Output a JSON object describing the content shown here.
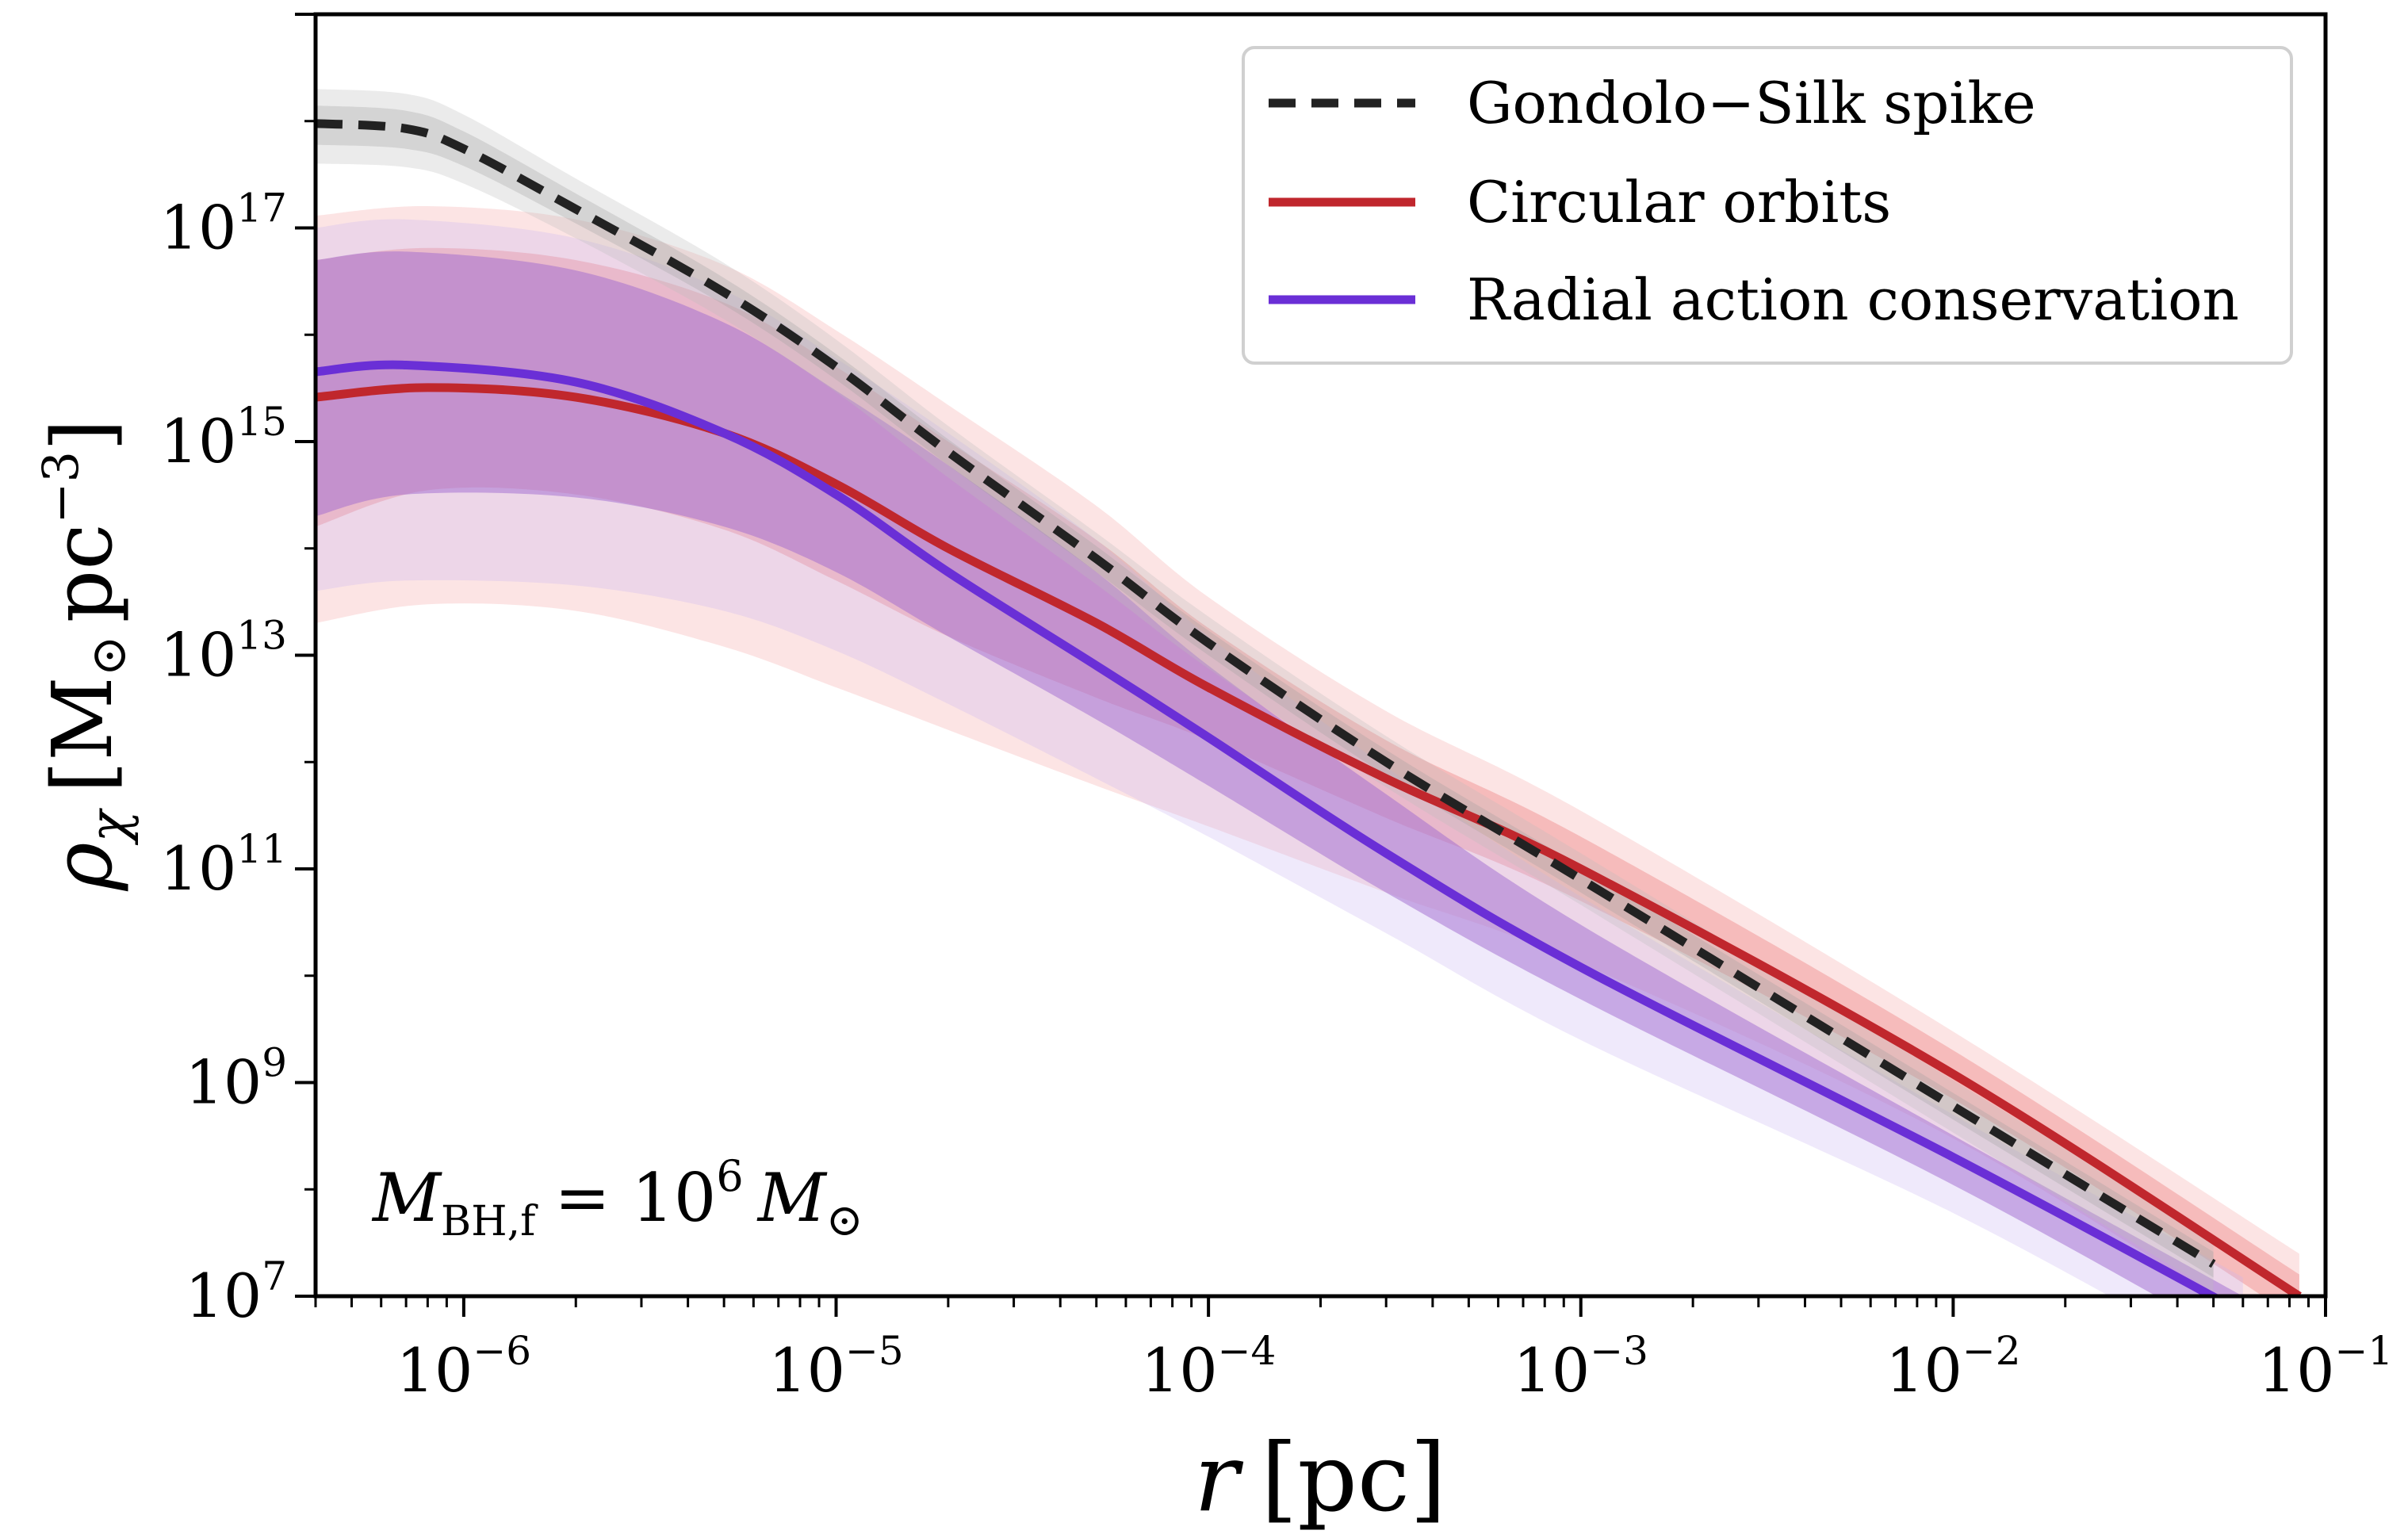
{
  "chart_data": {
    "type": "line",
    "x_scale": "log",
    "y_scale": "log",
    "xlim": [
      4e-07,
      0.1
    ],
    "ylim": [
      10000000.0,
      1e+19
    ],
    "xlabel": {
      "var": "r",
      "unit": "[pc]"
    },
    "ylabel": {
      "var": "ρ",
      "sub": "χ",
      "unit_open": "[M",
      "unit_sun": "⊙",
      "unit_pc": "pc",
      "unit_exp": "−3",
      "unit_close": "]"
    },
    "x_ticks": [
      {
        "base": "10",
        "exp": "−6",
        "value": 1e-06
      },
      {
        "base": "10",
        "exp": "−5",
        "value": 1e-05
      },
      {
        "base": "10",
        "exp": "−4",
        "value": 0.0001
      },
      {
        "base": "10",
        "exp": "−3",
        "value": 0.001
      },
      {
        "base": "10",
        "exp": "−2",
        "value": 0.01
      },
      {
        "base": "10",
        "exp": "−1",
        "value": 0.1
      }
    ],
    "y_ticks": [
      {
        "base": "10",
        "exp": "7",
        "value": 10000000.0
      },
      {
        "base": "10",
        "exp": "9",
        "value": 1000000000.0
      },
      {
        "base": "10",
        "exp": "11",
        "value": 100000000000.0
      },
      {
        "base": "10",
        "exp": "13",
        "value": 10000000000000.0
      },
      {
        "base": "10",
        "exp": "15",
        "value": 1000000000000000.0
      },
      {
        "base": "10",
        "exp": "17",
        "value": 1e+17
      }
    ],
    "grid": false,
    "legend_position": "top-right",
    "annotation": {
      "M": "M",
      "sub": "BH,f",
      "eq": "= 10",
      "exp": "6",
      "M2": "M",
      "sun": "⊙"
    },
    "series": [
      {
        "name": "Gondolo−Silk spike",
        "color": "#222222",
        "style": "dashed",
        "x": [
          4e-07,
          7e-07,
          1e-06,
          2e-06,
          5e-06,
          1e-05,
          2e-05,
          5e-05,
          0.0001,
          0.0003,
          0.001,
          0.01,
          0.05
        ],
        "y": [
          9.5e+17,
          8.5e+17,
          5.5e+17,
          1.5e+17,
          2.5e+16,
          5000000000000000.0,
          800000000000000.0,
          80000000000000.0,
          13000000000000.0,
          1000000000000.0,
          80000000000.0,
          600000000.0,
          20000000.0
        ],
        "band_inner": {
          "low": [
            6e+17,
            5.5e+17,
            3.8e+17,
            1.1e+17,
            1.9e+16,
            3800000000000000.0,
            600000000000000.0,
            60000000000000.0,
            10000000000000.0,
            750000000000.0,
            60000000000.0,
            450000000.0,
            15000000.0
          ],
          "high": [
            1.4e+18,
            1.25e+18,
            8e+17,
            2.1e+17,
            3.4e+16,
            6600000000000000.0,
            1050000000000000.0,
            105000000000000.0,
            17000000000000.0,
            1300000000000.0,
            105000000000.0,
            800000000.0,
            26000000.0
          ]
        },
        "band_outer": {
          "low": [
            4e+17,
            3.7e+17,
            2.6e+17,
            8e+16,
            1.4e+16,
            2900000000000000.0,
            460000000000000.0,
            46000000000000.0,
            7500000000000.0,
            580000000000.0,
            46000000000.0,
            340000000.0,
            11000000.0
          ],
          "high": [
            2e+18,
            1.8e+18,
            1.15e+18,
            2.9e+17,
            4.7e+16,
            9000000000000000.0,
            1400000000000000.0,
            140000000000000.0,
            23000000000000.0,
            1750000000000.0,
            140000000000.0,
            1050000000.0,
            35000000.0
          ]
        }
      },
      {
        "name": "Circular orbits",
        "color": "#c0272d",
        "style": "solid",
        "x": [
          4e-07,
          8e-07,
          2e-06,
          5e-06,
          1e-05,
          2e-05,
          5e-05,
          0.0001,
          0.0003,
          0.001,
          0.01,
          0.085
        ],
        "y": [
          2600000000000000.0,
          3200000000000000.0,
          2600000000000000.0,
          1200000000000000.0,
          400000000000000.0,
          100000000000000.0,
          20000000000000.0,
          5000000000000.0,
          700000000000.0,
          100000000000.0,
          1200000000.0,
          10000000.0
        ],
        "band_inner": {
          "low": [
            160000000000000.0,
            350000000000000.0,
            320000000000000.0,
            150000000000000.0,
            50000000000000.0,
            15000000000000.0,
            4000000000000.0,
            1600000000000.0,
            300000000000.0,
            50000000000.0,
            700000000.0,
            6000000.0
          ],
          "high": [
            5e+16,
            6.5e+16,
            5e+16,
            2e+16,
            5000000000000000.0,
            1000000000000000.0,
            120000000000000.0,
            18000000000000.0,
            1600000000000.0,
            200000000000.0,
            2000000000.0,
            16000000.0
          ]
        },
        "band_outer": {
          "low": [
            20000000000000.0,
            30000000000000.0,
            26000000000000.0,
            12000000000000.0,
            5000000000000.0,
            2000000000000.0,
            600000000000.0,
            250000000000.0,
            60000000000.0,
            13000000000.0,
            300000000.0,
            3000000.0
          ],
          "high": [
            1.3e+17,
            1.6e+17,
            1.2e+17,
            4.5e+16,
            1.1e+16,
            2200000000000000.0,
            250000000000000.0,
            35000000000000.0,
            3000000000000.0,
            350000000000.0,
            3000000000.0,
            25000000.0
          ]
        }
      },
      {
        "name": "Radial action conservation",
        "color": "#6a2fd6",
        "style": "solid",
        "x": [
          4e-07,
          7e-07,
          2e-06,
          5e-06,
          1e-05,
          2e-05,
          5e-05,
          0.0001,
          0.0003,
          0.001,
          0.01,
          0.06
        ],
        "y": [
          4500000000000000.0,
          5200000000000000.0,
          3600000000000000.0,
          1200000000000000.0,
          320000000000000.0,
          60000000000000.0,
          8000000000000.0,
          1700000000000.0,
          140000000000.0,
          12000000000.0,
          200000000.0,
          7000000.0
        ],
        "band_inner": {
          "low": [
            200000000000000.0,
            320000000000000.0,
            300000000000000.0,
            160000000000000.0,
            60000000000000.0,
            15000000000000.0,
            2500000000000.0,
            600000000000.0,
            60000000000.0,
            6000000000.0,
            110000000.0,
            3500000.0
          ],
          "high": [
            5e+16,
            6e+16,
            4e+16,
            1.3e+16,
            3000000000000000.0,
            600000000000000.0,
            60000000000000.0,
            8000000000000.0,
            500000000000.0,
            30000000000.0,
            320000000.0,
            10000000.0
          ]
        },
        "band_outer": {
          "low": [
            40000000000000.0,
            50000000000000.0,
            45000000000000.0,
            26000000000000.0,
            11000000000000.0,
            3500000000000.0,
            700000000000.0,
            200000000000.0,
            25000000000.0,
            2500000000.0,
            60000000.0,
            2000000.0
          ],
          "high": [
            1e+17,
            1.2e+17,
            8e+16,
            2.6e+16,
            6000000000000000.0,
            1200000000000000.0,
            120000000000000.0,
            15000000000000.0,
            900000000000.0,
            55000000000.0,
            500000000.0,
            15000000.0
          ]
        }
      }
    ]
  }
}
